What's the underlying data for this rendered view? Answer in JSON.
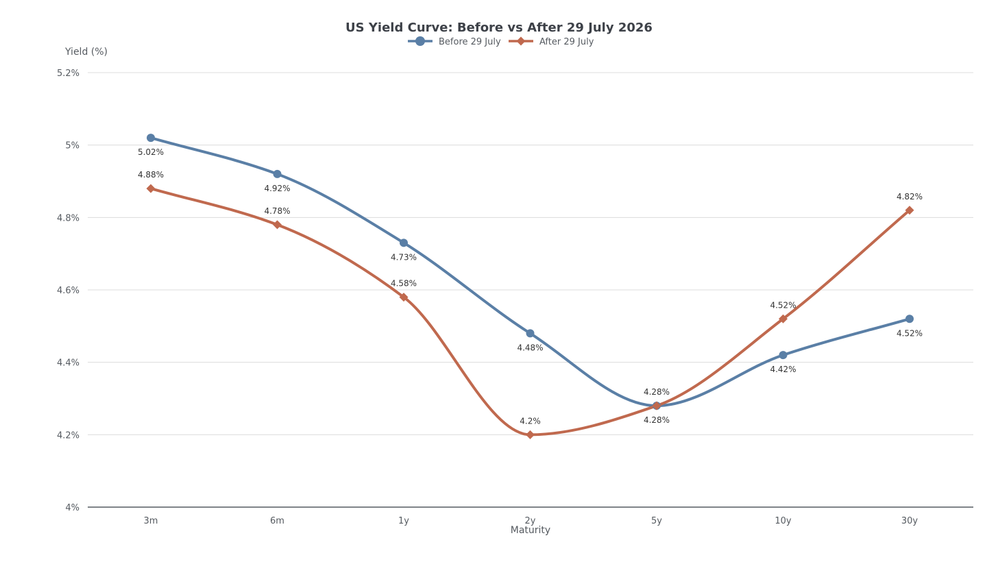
{
  "chart_data": {
    "type": "line",
    "title": "US Yield Curve: Before vs After 29 July 2026",
    "xlabel": "Maturity",
    "ylabel": "Yield (%)",
    "categories": [
      "3m",
      "6m",
      "1y",
      "2y",
      "5y",
      "10y",
      "30y"
    ],
    "ylim": [
      4.0,
      5.2
    ],
    "yticks": [
      4.0,
      4.2,
      4.4,
      4.6,
      4.8,
      5.0,
      5.2
    ],
    "ytick_labels": [
      "4%",
      "4.2%",
      "4.4%",
      "4.6%",
      "4.8%",
      "5%",
      "5.2%"
    ],
    "grid": true,
    "legend_position": "top-center",
    "series": [
      {
        "name": "Before 29 July",
        "color": "#5a7fa6",
        "marker": "circle",
        "values": [
          5.02,
          4.92,
          4.73,
          4.48,
          4.28,
          4.42,
          4.52
        ],
        "labels": [
          "5.02%",
          "4.92%",
          "4.73%",
          "4.48%",
          "4.28%",
          "4.42%",
          "4.52%"
        ],
        "label_position": "below"
      },
      {
        "name": "After 29 July",
        "color": "#c0694e",
        "marker": "diamond",
        "values": [
          4.88,
          4.78,
          4.58,
          4.2,
          4.28,
          4.52,
          4.82
        ],
        "labels": [
          "4.88%",
          "4.78%",
          "4.58%",
          "4.2%",
          "4.28%",
          "4.52%",
          "4.82%"
        ],
        "label_position": "above"
      }
    ]
  }
}
